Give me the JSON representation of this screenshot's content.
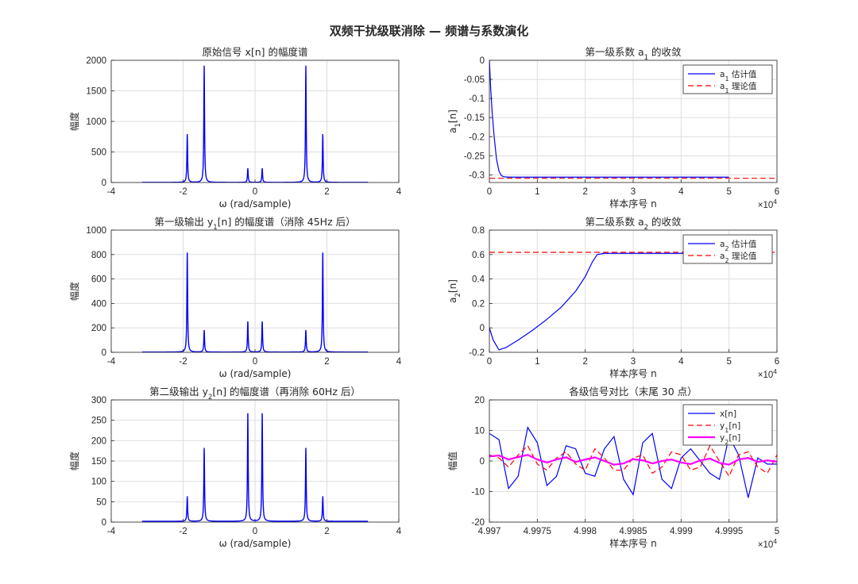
{
  "figure": {
    "title": "双频干扰级联消除 — 频谱与系数演化"
  },
  "chart_data": [
    {
      "id": "p1",
      "type": "line",
      "title": "原始信号 x[n] 的幅度谱",
      "xlabel": "ω  (rad/sample)",
      "ylabel": "幅度",
      "xlim": [
        -4,
        4
      ],
      "ylim": [
        0,
        2000
      ],
      "xticks": [
        -4,
        -2,
        0,
        2,
        4
      ],
      "yticks": [
        0,
        500,
        1000,
        1500,
        2000
      ],
      "xtick_labels": [
        "-4",
        "-2",
        "0",
        "2",
        "4"
      ],
      "ytick_labels": [
        "0",
        "500",
        "1000",
        "1500",
        "2000"
      ],
      "grid": true,
      "legend": null,
      "spectrum": {
        "range": [
          -3.1416,
          3.1416
        ],
        "peaks": [
          {
            "w": -1.885,
            "amp": 780
          },
          {
            "w": -1.414,
            "amp": 1910
          },
          {
            "w": -0.2,
            "amp": 230
          },
          {
            "w": 0.2,
            "amp": 230
          },
          {
            "w": 1.414,
            "amp": 1910
          },
          {
            "w": 1.885,
            "amp": 780
          }
        ]
      },
      "series": [
        {
          "color": "#0000ff",
          "dash": ""
        }
      ]
    },
    {
      "id": "p2",
      "type": "line",
      "title": "第一级系数  a",
      "title_sub": "1",
      "title_tail": "  的收敛",
      "xlabel": "样本序号 n",
      "ylabel": "a",
      "ylabel_sub": "1",
      "ylabel_tail": "[n]",
      "xlim": [
        0,
        6
      ],
      "ylim": [
        -0.32,
        0
      ],
      "xticks": [
        0,
        1,
        2,
        3,
        4,
        5,
        6
      ],
      "yticks": [
        0,
        -0.05,
        -0.1,
        -0.15,
        -0.2,
        -0.25,
        -0.3
      ],
      "xtick_labels": [
        "0",
        "1",
        "2",
        "3",
        "4",
        "5",
        "6"
      ],
      "ytick_labels": [
        "0",
        "-0.05",
        "-0.1",
        "-0.15",
        "-0.2",
        "-0.25",
        "-0.3"
      ],
      "x_exponent": "×10",
      "x_exponent_power": "4",
      "grid": true,
      "legend": "top-right",
      "series": [
        {
          "name": "a",
          "name_sub": "1",
          "name_tail": "  估计值",
          "color": "#0000ff",
          "dash": "",
          "x": [
            0,
            0.03,
            0.06,
            0.1,
            0.15,
            0.2,
            0.25,
            0.3,
            0.4,
            1,
            2,
            3,
            4,
            5
          ],
          "y": [
            0,
            -0.08,
            -0.14,
            -0.2,
            -0.26,
            -0.29,
            -0.302,
            -0.305,
            -0.306,
            -0.306,
            -0.306,
            -0.306,
            -0.306,
            -0.306
          ]
        },
        {
          "name": "a",
          "name_sub": "1",
          "name_tail": "  理论值",
          "color": "#ff0000",
          "dash": "7 4",
          "x": [
            0,
            6
          ],
          "y": [
            -0.309,
            -0.309
          ]
        }
      ]
    },
    {
      "id": "p3",
      "type": "line",
      "title": "第一级输出  y",
      "title_sub": "1",
      "title_tail": "[n]  的幅度谱（消除  45Hz  后）",
      "xlabel": "ω  (rad/sample)",
      "ylabel": "幅度",
      "xlim": [
        -4,
        4
      ],
      "ylim": [
        0,
        1000
      ],
      "xticks": [
        -4,
        -2,
        0,
        2,
        4
      ],
      "yticks": [
        0,
        200,
        400,
        600,
        800,
        1000
      ],
      "xtick_labels": [
        "-4",
        "-2",
        "0",
        "2",
        "4"
      ],
      "ytick_labels": [
        "0",
        "200",
        "400",
        "600",
        "800",
        "1000"
      ],
      "grid": true,
      "legend": null,
      "spectrum": {
        "range": [
          -3.1416,
          3.1416
        ],
        "peaks": [
          {
            "w": -1.885,
            "amp": 810
          },
          {
            "w": -1.414,
            "amp": 180
          },
          {
            "w": -0.2,
            "amp": 250
          },
          {
            "w": 0.2,
            "amp": 250
          },
          {
            "w": 1.414,
            "amp": 180
          },
          {
            "w": 1.885,
            "amp": 810
          }
        ]
      },
      "series": [
        {
          "color": "#0000ff",
          "dash": ""
        }
      ]
    },
    {
      "id": "p4",
      "type": "line",
      "title": "第二级系数  a",
      "title_sub": "2",
      "title_tail": "  的收敛",
      "xlabel": "样本序号 n",
      "ylabel": "a",
      "ylabel_sub": "2",
      "ylabel_tail": "[n]",
      "xlim": [
        0,
        6
      ],
      "ylim": [
        -0.2,
        0.8
      ],
      "xticks": [
        0,
        1,
        2,
        3,
        4,
        5,
        6
      ],
      "yticks": [
        -0.2,
        0,
        0.2,
        0.4,
        0.6,
        0.8
      ],
      "xtick_labels": [
        "0",
        "1",
        "2",
        "3",
        "4",
        "5",
        "6"
      ],
      "ytick_labels": [
        "-0.2",
        "0",
        "0.2",
        "0.4",
        "0.6",
        "0.8"
      ],
      "x_exponent": "×10",
      "x_exponent_power": "4",
      "grid": true,
      "legend": "top-right",
      "series": [
        {
          "name": "a",
          "name_sub": "2",
          "name_tail": "  估计值",
          "color": "#0000ff",
          "dash": "",
          "x": [
            0,
            0.08,
            0.2,
            0.35,
            0.6,
            0.9,
            1.2,
            1.5,
            1.8,
            2.0,
            2.15,
            2.25,
            2.4,
            3,
            4,
            5
          ],
          "y": [
            0,
            -0.1,
            -0.18,
            -0.16,
            -0.1,
            -0.02,
            0.07,
            0.17,
            0.3,
            0.42,
            0.54,
            0.6,
            0.61,
            0.61,
            0.61,
            0.61
          ]
        },
        {
          "name": "a",
          "name_sub": "2",
          "name_tail": "  理论值",
          "color": "#ff0000",
          "dash": "7 4",
          "x": [
            0,
            6
          ],
          "y": [
            0.618,
            0.618
          ]
        }
      ]
    },
    {
      "id": "p5",
      "type": "line",
      "title": "第二级输出  y",
      "title_sub": "2",
      "title_tail": "[n]  的幅度谱（再消除  60Hz  后）",
      "xlabel": "ω  (rad/sample)",
      "ylabel": "幅度",
      "xlim": [
        -4,
        4
      ],
      "ylim": [
        0,
        300
      ],
      "xticks": [
        -4,
        -2,
        0,
        2,
        4
      ],
      "yticks": [
        0,
        50,
        100,
        150,
        200,
        250,
        300
      ],
      "xtick_labels": [
        "-4",
        "-2",
        "0",
        "2",
        "4"
      ],
      "ytick_labels": [
        "0",
        "50",
        "100",
        "150",
        "200",
        "250",
        "300"
      ],
      "grid": true,
      "legend": null,
      "spectrum": {
        "range": [
          -3.1416,
          3.1416
        ],
        "peaks": [
          {
            "w": -1.885,
            "amp": 60
          },
          {
            "w": -1.414,
            "amp": 180
          },
          {
            "w": -0.2,
            "amp": 265
          },
          {
            "w": 0.2,
            "amp": 265
          },
          {
            "w": 1.414,
            "amp": 180
          },
          {
            "w": 1.885,
            "amp": 60
          }
        ]
      },
      "series": [
        {
          "color": "#0000ff",
          "dash": ""
        }
      ]
    },
    {
      "id": "p6",
      "type": "line",
      "title": "各级信号对比（末尾 30 点）",
      "xlabel": "样本序号 n",
      "ylabel": "幅值",
      "xlim": [
        4.997,
        5.0
      ],
      "ylim": [
        -20,
        20
      ],
      "xticks": [
        4.997,
        4.9975,
        4.998,
        4.9985,
        4.999,
        4.9995,
        5.0
      ],
      "yticks": [
        -20,
        -10,
        0,
        10,
        20
      ],
      "xtick_labels": [
        "4.997",
        "4.9975",
        "4.998",
        "4.9985",
        "4.999",
        "4.9995",
        "5"
      ],
      "ytick_labels": [
        "-20",
        "-10",
        "0",
        "10",
        "20"
      ],
      "x_exponent": "×10",
      "x_exponent_power": "4",
      "grid": true,
      "legend": "top-right",
      "x": [
        4.997,
        4.9971,
        4.9972,
        4.9973,
        4.9974,
        4.9975,
        4.9976,
        4.9977,
        4.9978,
        4.9979,
        4.998,
        4.9981,
        4.9982,
        4.9983,
        4.9984,
        4.9985,
        4.9986,
        4.9987,
        4.9988,
        4.9989,
        4.999,
        4.9991,
        4.9992,
        4.9993,
        4.9994,
        4.9995,
        4.9996,
        4.9997,
        4.9998,
        4.9999,
        5.0
      ],
      "series": [
        {
          "name": "x[n]",
          "color": "#0000ff",
          "dash": "",
          "width": 1.2,
          "y": [
            9,
            7,
            -9,
            -5,
            11,
            6,
            -8,
            -5,
            5,
            4,
            -4,
            -5,
            4,
            8,
            -6,
            -11,
            6,
            9,
            -6,
            -9,
            1,
            4,
            0,
            -4,
            -6,
            8,
            2,
            -12,
            1,
            -1,
            -1
          ]
        },
        {
          "name": "y",
          "name_sub": "1",
          "name_tail": "[n]",
          "color": "#ff0000",
          "dash": "7 4",
          "width": 1.2,
          "y": [
            2,
            1,
            -2,
            2,
            5,
            -1,
            -3,
            1,
            3,
            -1,
            -3,
            4,
            1,
            -3,
            -3,
            1,
            2,
            -4,
            -2,
            3,
            2,
            -3,
            -2,
            5,
            0,
            -5,
            2,
            3,
            -2,
            -4,
            2
          ]
        },
        {
          "name": "y",
          "name_sub": "2",
          "name_tail": "[n]",
          "color": "#ff00ff",
          "dash": "",
          "width": 2.2,
          "y": [
            1.5,
            1.8,
            0.5,
            1.3,
            2,
            0.5,
            -0.5,
            0.5,
            1.2,
            -0.3,
            0.5,
            1.2,
            0,
            -1.2,
            -0.8,
            0.6,
            0.2,
            -0.8,
            0,
            0.5,
            -0.5,
            -1,
            0.2,
            0.8,
            -0.6,
            -1.2,
            0.5,
            1,
            -0.3,
            0.2,
            -0.2
          ]
        }
      ]
    }
  ]
}
